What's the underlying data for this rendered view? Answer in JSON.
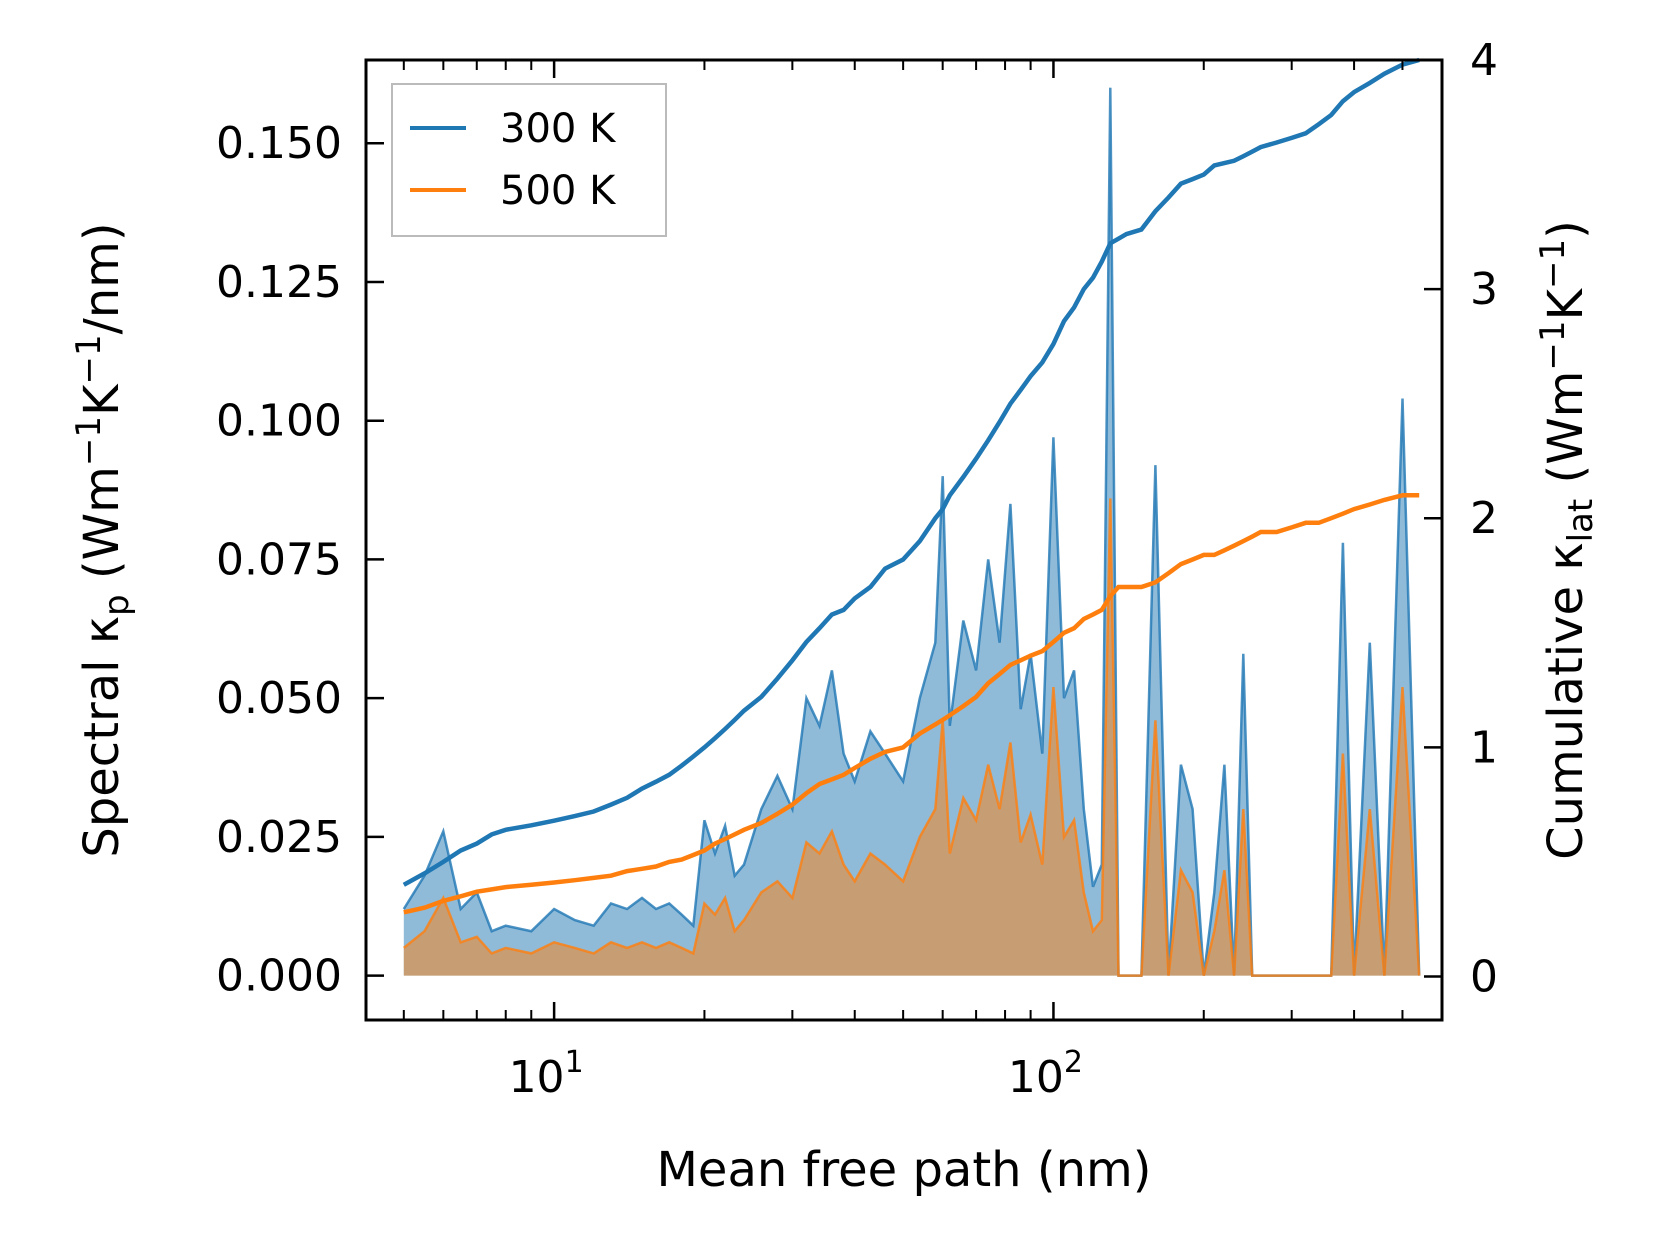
{
  "colors": {
    "s300": "#1f77b4",
    "s500": "#ff7f0e",
    "fill300": "#1f77b4",
    "fill500": "#ff7f0e",
    "axis": "#000000",
    "legend_border": "#bbbbbb"
  },
  "chart_data": {
    "type": "line",
    "xscale": "log",
    "xlim": [
      4.2,
      600
    ],
    "ylim_left": [
      -0.008,
      0.165
    ],
    "ylim_right": [
      -0.19,
      4.0
    ],
    "left_ticks": [
      {
        "v": 0.0,
        "label": "0.000"
      },
      {
        "v": 0.025,
        "label": "0.025"
      },
      {
        "v": 0.05,
        "label": "0.050"
      },
      {
        "v": 0.075,
        "label": "0.075"
      },
      {
        "v": 0.1,
        "label": "0.100"
      },
      {
        "v": 0.125,
        "label": "0.125"
      },
      {
        "v": 0.15,
        "label": "0.150"
      }
    ],
    "right_ticks": [
      {
        "v": 0,
        "label": "0"
      },
      {
        "v": 1,
        "label": "1"
      },
      {
        "v": 2,
        "label": "2"
      },
      {
        "v": 3,
        "label": "3"
      },
      {
        "v": 4,
        "label": "4"
      }
    ],
    "x_major_ticks": [
      {
        "v": 10,
        "base": "10",
        "exp": "1"
      },
      {
        "v": 100,
        "base": "10",
        "exp": "2"
      }
    ],
    "xlabel": "Mean free path (nm)",
    "ylabel_left": {
      "text": "Spectral κ",
      "sub": "p",
      "unit_a": " (Wm",
      "e1": "−1",
      "unit_b": "K",
      "e2": "−1",
      "unit_c": "/nm)"
    },
    "ylabel_right": {
      "text": "Cumulative κ",
      "sub": "lat",
      "unit_a": " (Wm",
      "e1": "−1",
      "unit_b": "K",
      "e2": "−1",
      "unit_c": ")"
    },
    "legend": {
      "position": "top-left",
      "entries": [
        "300 K",
        "500 K"
      ]
    },
    "x": [
      5.0,
      5.5,
      6.0,
      6.5,
      7.0,
      7.5,
      8.0,
      9.0,
      10.0,
      11.0,
      12.0,
      13.0,
      14.0,
      15.0,
      16.0,
      17.0,
      18.0,
      19.0,
      20.0,
      21.0,
      22.0,
      23.0,
      24.0,
      26.0,
      28.0,
      30.0,
      32.0,
      34.0,
      36.0,
      38.0,
      40.0,
      43.0,
      46.0,
      50.0,
      54.0,
      58.0,
      60.0,
      62.0,
      66.0,
      70.0,
      74.0,
      78.0,
      82.0,
      86.0,
      90.0,
      95.0,
      100.0,
      105.0,
      110.0,
      115.0,
      120.0,
      125.0,
      130.0,
      135.0,
      140.0,
      150.0,
      160.0,
      170.0,
      180.0,
      190.0,
      200.0,
      210.0,
      220.0,
      230.0,
      240.0,
      250.0,
      260.0,
      280.0,
      300.0,
      320.0,
      340.0,
      360.0,
      380.0,
      400.0,
      430.0,
      460.0,
      500.0,
      540.0
    ],
    "series": [
      {
        "name": "300 K",
        "spectral": [
          0.012,
          0.018,
          0.026,
          0.012,
          0.015,
          0.008,
          0.009,
          0.008,
          0.012,
          0.01,
          0.009,
          0.013,
          0.012,
          0.014,
          0.012,
          0.013,
          0.011,
          0.009,
          0.028,
          0.022,
          0.027,
          0.018,
          0.02,
          0.03,
          0.036,
          0.03,
          0.05,
          0.045,
          0.055,
          0.04,
          0.035,
          0.044,
          0.04,
          0.035,
          0.05,
          0.06,
          0.09,
          0.045,
          0.064,
          0.055,
          0.075,
          0.06,
          0.085,
          0.048,
          0.058,
          0.04,
          0.097,
          0.05,
          0.055,
          0.03,
          0.016,
          0.02,
          0.16,
          0.0,
          0.0,
          0.0,
          0.092,
          0.0,
          0.038,
          0.03,
          0.0,
          0.015,
          0.038,
          0.0,
          0.058,
          0.0,
          0.0,
          0.0,
          0.0,
          0.0,
          0.0,
          0.0,
          0.078,
          0.0,
          0.06,
          0.0,
          0.104,
          0.0
        ],
        "cumulative": [
          0.4,
          0.45,
          0.5,
          0.55,
          0.58,
          0.62,
          0.64,
          0.66,
          0.68,
          0.7,
          0.72,
          0.75,
          0.78,
          0.82,
          0.85,
          0.88,
          0.92,
          0.96,
          1.0,
          1.04,
          1.08,
          1.12,
          1.16,
          1.22,
          1.3,
          1.38,
          1.46,
          1.52,
          1.58,
          1.6,
          1.65,
          1.7,
          1.78,
          1.82,
          1.9,
          2.0,
          2.04,
          2.1,
          2.18,
          2.26,
          2.34,
          2.42,
          2.5,
          2.56,
          2.62,
          2.68,
          2.76,
          2.86,
          2.92,
          3.0,
          3.05,
          3.12,
          3.2,
          3.22,
          3.24,
          3.26,
          3.34,
          3.4,
          3.46,
          3.48,
          3.5,
          3.54,
          3.55,
          3.56,
          3.58,
          3.6,
          3.62,
          3.64,
          3.66,
          3.68,
          3.72,
          3.76,
          3.82,
          3.86,
          3.9,
          3.94,
          3.98,
          4.0
        ]
      },
      {
        "name": "500 K",
        "spectral": [
          0.005,
          0.008,
          0.014,
          0.006,
          0.007,
          0.004,
          0.005,
          0.004,
          0.006,
          0.005,
          0.004,
          0.006,
          0.005,
          0.006,
          0.005,
          0.006,
          0.005,
          0.004,
          0.013,
          0.011,
          0.014,
          0.008,
          0.01,
          0.015,
          0.017,
          0.014,
          0.024,
          0.022,
          0.026,
          0.02,
          0.017,
          0.022,
          0.02,
          0.017,
          0.025,
          0.03,
          0.046,
          0.022,
          0.032,
          0.028,
          0.038,
          0.03,
          0.042,
          0.024,
          0.029,
          0.02,
          0.052,
          0.025,
          0.028,
          0.015,
          0.008,
          0.01,
          0.086,
          0.0,
          0.0,
          0.0,
          0.046,
          0.0,
          0.019,
          0.015,
          0.0,
          0.008,
          0.019,
          0.0,
          0.03,
          0.0,
          0.0,
          0.0,
          0.0,
          0.0,
          0.0,
          0.0,
          0.04,
          0.0,
          0.03,
          0.0,
          0.052,
          0.0
        ],
        "cumulative": [
          0.28,
          0.3,
          0.33,
          0.35,
          0.37,
          0.38,
          0.39,
          0.4,
          0.41,
          0.42,
          0.43,
          0.44,
          0.46,
          0.47,
          0.48,
          0.5,
          0.51,
          0.53,
          0.55,
          0.58,
          0.6,
          0.62,
          0.64,
          0.67,
          0.71,
          0.75,
          0.8,
          0.84,
          0.86,
          0.88,
          0.91,
          0.95,
          0.98,
          1.0,
          1.06,
          1.1,
          1.12,
          1.14,
          1.18,
          1.22,
          1.28,
          1.32,
          1.36,
          1.38,
          1.4,
          1.42,
          1.46,
          1.5,
          1.52,
          1.56,
          1.58,
          1.6,
          1.66,
          1.7,
          1.7,
          1.7,
          1.72,
          1.76,
          1.8,
          1.82,
          1.84,
          1.84,
          1.86,
          1.88,
          1.9,
          1.92,
          1.94,
          1.94,
          1.96,
          1.98,
          1.98,
          2.0,
          2.02,
          2.04,
          2.06,
          2.08,
          2.1,
          2.1
        ]
      }
    ]
  }
}
